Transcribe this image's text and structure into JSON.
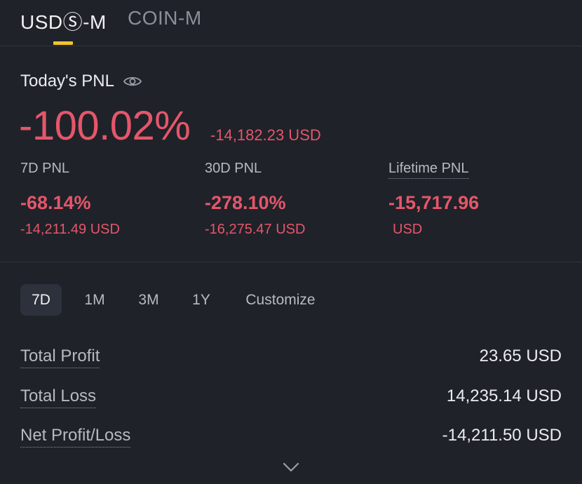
{
  "tabs": [
    {
      "label": "USDⓈ-M",
      "active": true
    },
    {
      "label": "COIN-M",
      "active": false
    }
  ],
  "today": {
    "title": "Today's PNL",
    "pct": "-100.02%",
    "usd": "-14,182.23 USD"
  },
  "stats": [
    {
      "label": "7D PNL",
      "pct": "-68.14%",
      "usd": "-14,211.49 USD"
    },
    {
      "label": "30D PNL",
      "pct": "-278.10%",
      "usd": "-16,275.47 USD"
    },
    {
      "label": "Lifetime PNL",
      "pct": "-15,717.96",
      "usd": "USD"
    }
  ],
  "ranges": [
    "7D",
    "1M",
    "3M",
    "1Y",
    "Customize"
  ],
  "active_range": "7D",
  "summary": [
    {
      "label": "Total Profit",
      "value": "23.65 USD"
    },
    {
      "label": "Total Loss",
      "value": "14,235.14 USD"
    },
    {
      "label": "Net Profit/Loss",
      "value": "-14,211.50 USD"
    }
  ],
  "colors": {
    "negative": "#e5566a",
    "accent": "#f0c330",
    "background": "#1f2229"
  },
  "icons": {
    "eye": "eye-icon",
    "expand": "chevron-down-icon"
  }
}
